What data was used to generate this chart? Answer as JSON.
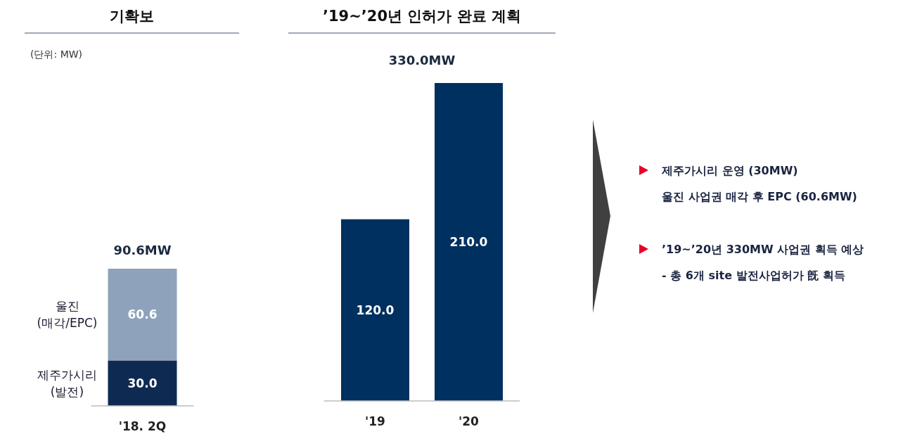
{
  "chart_data": [
    {
      "type": "bar",
      "title": "기확보",
      "subtitle": "(단위: MW)",
      "categories": [
        "'18. 2Q"
      ],
      "stacked": true,
      "series": [
        {
          "name": "제주가시리\n(발전)",
          "color": "#0f2a52",
          "values": [
            30
          ],
          "value_labels": [
            "30.0"
          ]
        },
        {
          "name": "울진\n(매각/EPC)",
          "color": "#8ea3bb",
          "values": [
            60.6
          ],
          "value_labels": [
            "60.6"
          ]
        }
      ],
      "totals": [
        "90.6MW"
      ]
    },
    {
      "type": "bar",
      "title": "’19~’20년 인허가 완료 계획",
      "categories": [
        "'19",
        "'20"
      ],
      "series": [
        {
          "color": "#00305f",
          "values": [
            120,
            210
          ],
          "value_labels": [
            "120.0",
            "210.0"
          ]
        }
      ],
      "annotations": [
        "330.0MW"
      ]
    },
    {
      "type": "other",
      "annotations": [
        "제주가시리 운영 (30MW)",
        "울진 사업권 매각 후 EPC (60.6MW)",
        "’19~’20년 330MW 사업권 획득 예상",
        "- 총 6개 site 발전사업허가 旣 획득"
      ]
    }
  ]
}
